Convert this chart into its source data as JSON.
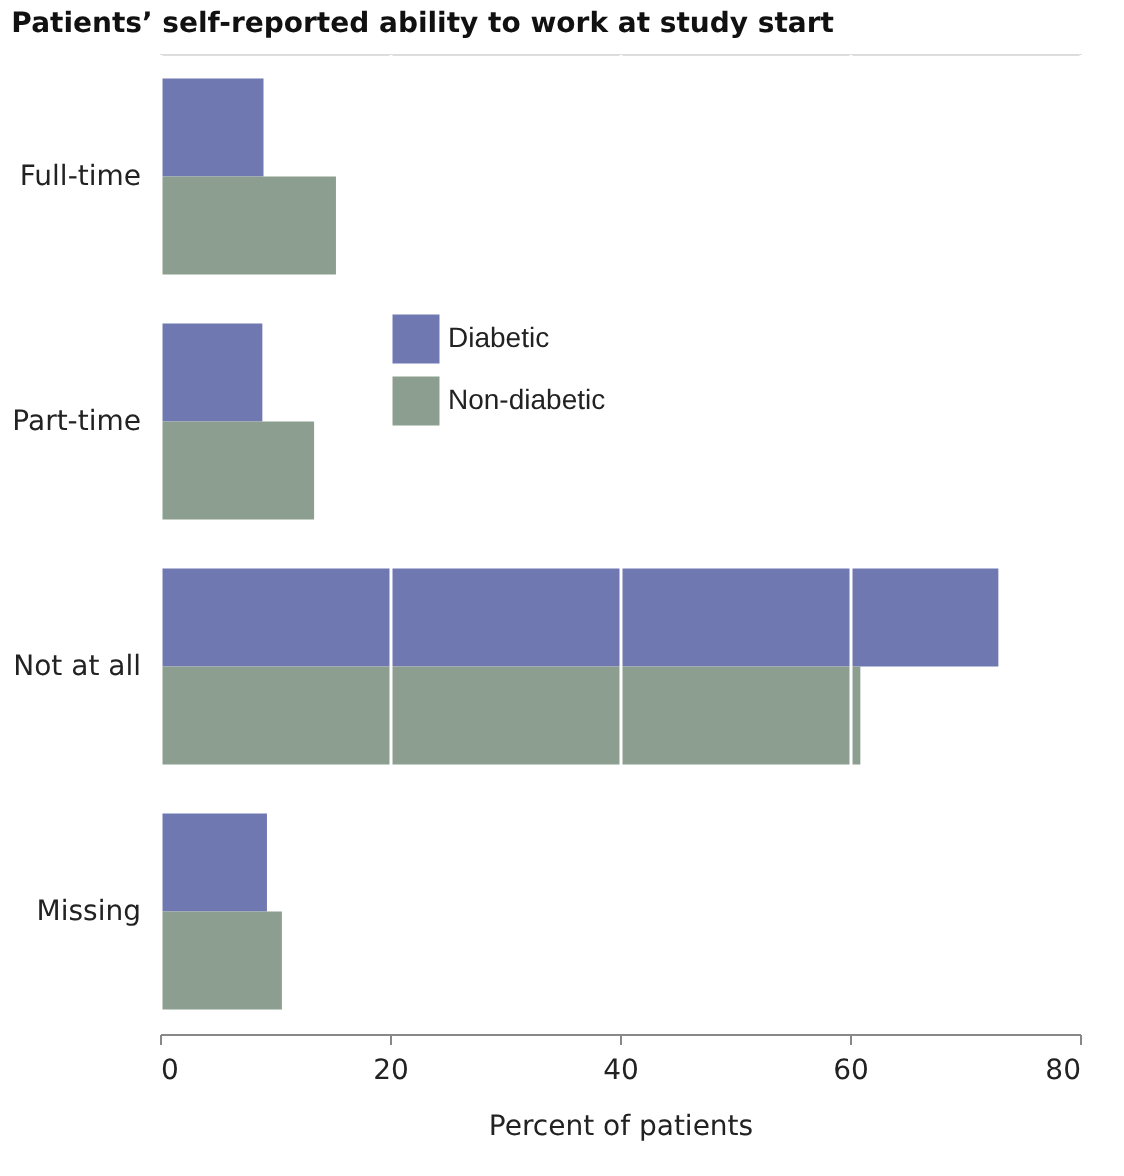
{
  "chart_data": {
    "type": "bar",
    "orientation": "horizontal",
    "title": "Patients’ self-reported ability to work at study start",
    "xlabel": "Percent of patients",
    "categories": [
      "Full-time",
      "Part-time",
      "Not at all",
      "Missing"
    ],
    "series": [
      {
        "name": "Diabetic",
        "color": "#6f78b0",
        "values": [
          9.0,
          8.9,
          72.9,
          9.3
        ]
      },
      {
        "name": "Non-diabetic",
        "color": "#8c9e90",
        "values": [
          15.3,
          13.4,
          60.9,
          10.6
        ]
      }
    ],
    "xlim": [
      0,
      80
    ],
    "xticks": [
      0,
      20,
      40,
      60,
      80
    ],
    "grid": "x",
    "legend": "top"
  }
}
